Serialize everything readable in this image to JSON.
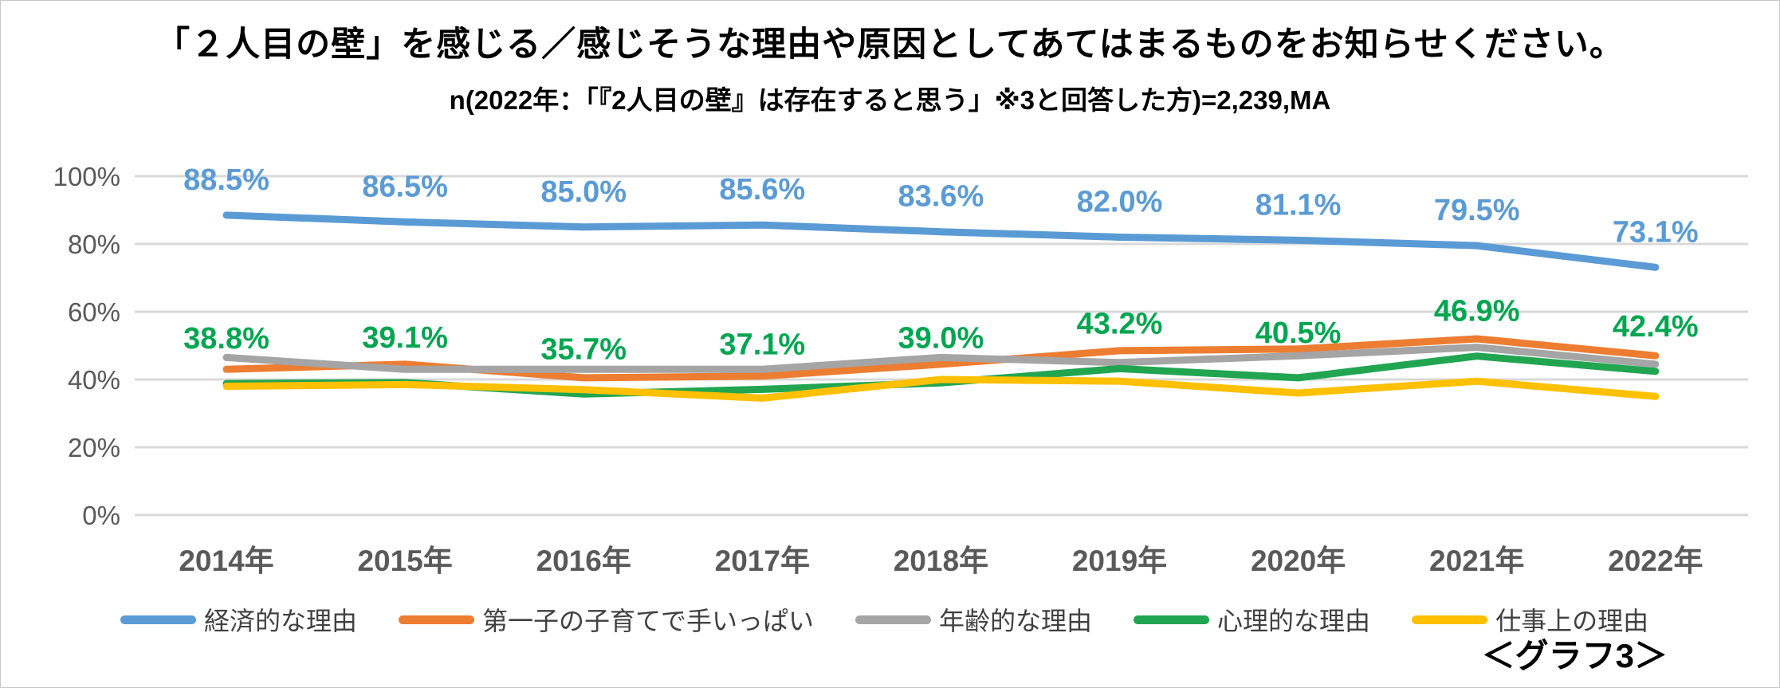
{
  "chart_data": {
    "type": "line",
    "title": "「２人目の壁」を感じる／感じそうな理由や原因としてあてはまるものをお知らせください。",
    "subtitle": "n(2022年：「『2人目の壁』は存在すると思う」※3と回答した方)=2,239,MA",
    "footer_note": "＜グラフ3＞",
    "categories": [
      "2014年",
      "2015年",
      "2016年",
      "2017年",
      "2018年",
      "2019年",
      "2020年",
      "2021年",
      "2022年"
    ],
    "ylim": [
      0,
      100
    ],
    "y_ticks": [
      "0%",
      "20%",
      "40%",
      "60%",
      "80%",
      "100%"
    ],
    "grid": "horizontal",
    "legend_position": "bottom",
    "axis_color": "#595959",
    "gridline_color": "#d9d9d9",
    "series": [
      {
        "name": "経済的な理由",
        "color": "#5B9BD5",
        "label_color": "#5B9BD5",
        "labels_visible": true,
        "values": [
          88.5,
          86.5,
          85.0,
          85.6,
          83.6,
          82.0,
          81.1,
          79.5,
          73.1
        ]
      },
      {
        "name": "第一子の子育てで手いっぱい",
        "color": "#ED7D31",
        "label_color": "#ED7D31",
        "labels_visible": false,
        "values": [
          43.0,
          44.5,
          40.5,
          41.0,
          44.5,
          48.5,
          49.0,
          52.0,
          47.0
        ]
      },
      {
        "name": "年齢的な理由",
        "color": "#A5A5A5",
        "label_color": "#A5A5A5",
        "labels_visible": false,
        "values": [
          46.5,
          43.0,
          43.0,
          43.0,
          46.5,
          45.0,
          47.0,
          49.5,
          44.5
        ]
      },
      {
        "name": "心理的な理由",
        "color": "#21A551",
        "label_color": "#00A550",
        "labels_visible": true,
        "values": [
          38.8,
          39.1,
          35.7,
          37.1,
          39.0,
          43.2,
          40.5,
          46.9,
          42.4
        ]
      },
      {
        "name": "仕事上の理由",
        "color": "#FFC000",
        "label_color": "#FFC000",
        "labels_visible": false,
        "values": [
          38.0,
          38.5,
          37.0,
          34.5,
          40.0,
          39.5,
          36.0,
          39.5,
          35.0
        ]
      }
    ]
  }
}
